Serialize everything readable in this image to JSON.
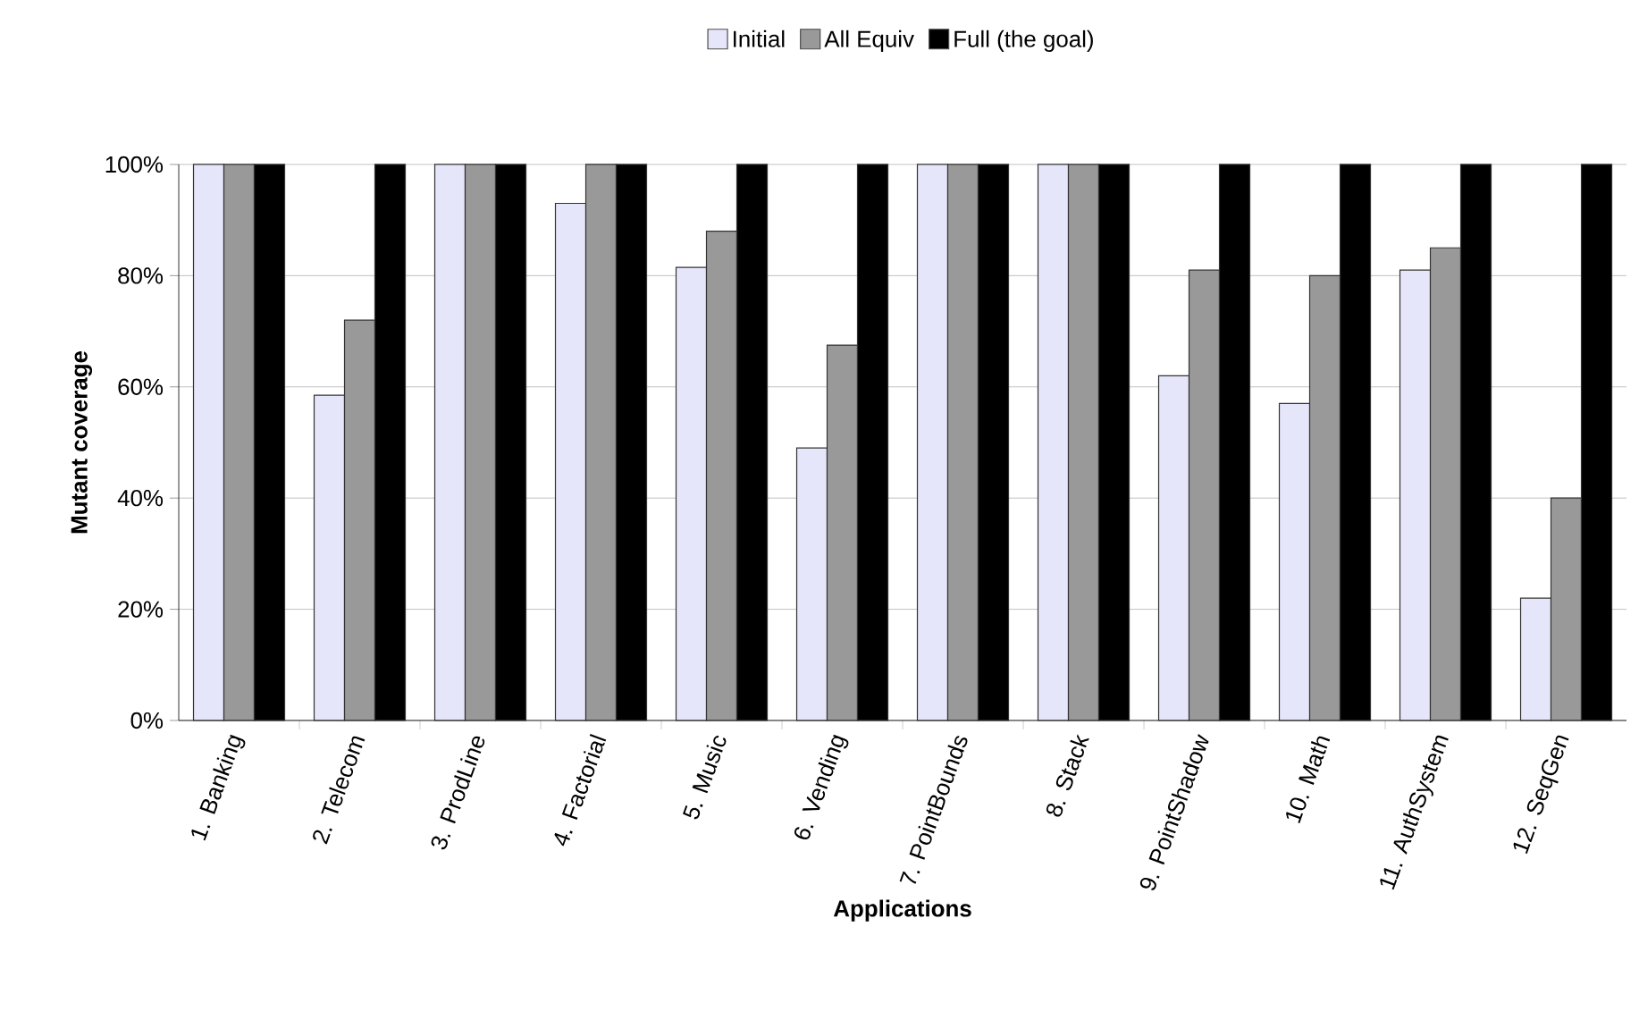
{
  "chart_data": {
    "type": "bar",
    "xlabel": "Applications",
    "ylabel": "Mutant coverage",
    "categories": [
      "1. Banking",
      "2. Telecom",
      "3. ProdLine",
      "4. Factorial",
      "5. Music",
      "6. Vending",
      "7. PointBounds",
      "8. Stack",
      "9. PointShadow",
      "10. Math",
      "11. AuthSystem",
      "12. SeqGen"
    ],
    "series": [
      {
        "name": "Initial",
        "color": "#e6e6fa",
        "values": [
          100,
          58.5,
          100,
          93,
          81.5,
          49,
          100,
          100,
          62,
          57,
          81,
          22
        ]
      },
      {
        "name": "All Equiv",
        "color": "#999999",
        "values": [
          100,
          72,
          100,
          100,
          88,
          67.5,
          100,
          100,
          81,
          80,
          85,
          40
        ]
      },
      {
        "name": "Full (the goal)",
        "color": "#000000",
        "values": [
          100,
          100,
          100,
          100,
          100,
          100,
          100,
          100,
          100,
          100,
          100,
          100
        ]
      }
    ],
    "ylim": [
      0,
      100
    ],
    "yticks": [
      {
        "value": 0,
        "label": "0%"
      },
      {
        "value": 20,
        "label": "20%"
      },
      {
        "value": 40,
        "label": "40%"
      },
      {
        "value": 60,
        "label": "60%"
      },
      {
        "value": 80,
        "label": "80%"
      },
      {
        "value": 100,
        "label": "100%"
      }
    ],
    "grid": "y",
    "legend": "top"
  }
}
